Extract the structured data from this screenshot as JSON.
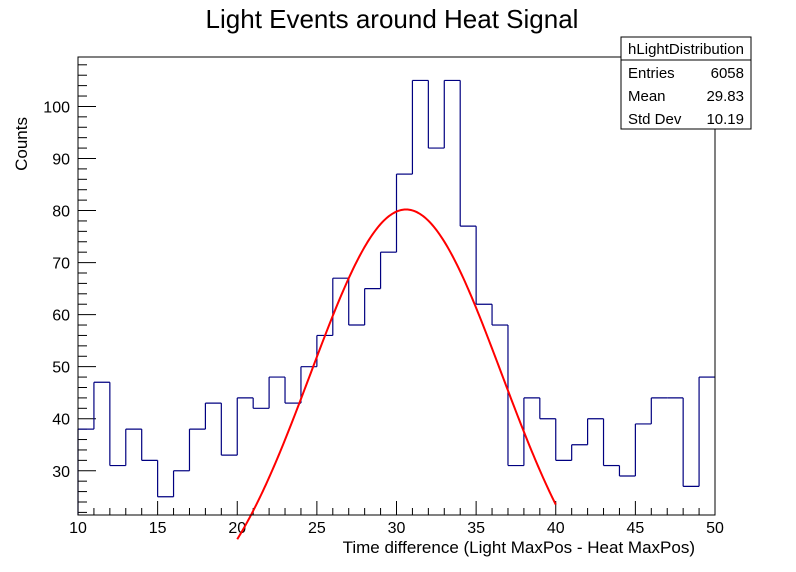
{
  "chart_data": {
    "type": "histogram",
    "title": "Light Events around Heat Signal",
    "xlabel": "Time difference (Light MaxPos - Heat MaxPos)",
    "ylabel": "Counts",
    "xlim": [
      10,
      50
    ],
    "ylim": [
      21.5,
      109.5
    ],
    "bin_edges": [
      10,
      11,
      12,
      13,
      14,
      15,
      16,
      17,
      18,
      19,
      20,
      21,
      22,
      23,
      24,
      25,
      26,
      27,
      28,
      29,
      30,
      31,
      32,
      33,
      34,
      35,
      36,
      37,
      38,
      39,
      40,
      41,
      42,
      43,
      44,
      45,
      46,
      47,
      48,
      49,
      50
    ],
    "values": [
      38,
      47,
      31,
      38,
      32,
      25,
      30,
      38,
      43,
      33,
      44,
      42,
      48,
      43,
      50,
      56,
      67,
      58,
      65,
      72,
      87,
      105,
      92,
      105,
      77,
      62,
      58,
      31,
      44,
      40,
      32,
      35,
      40,
      31,
      29,
      39,
      44,
      44,
      27,
      48
    ],
    "x_ticks": [
      "10",
      "15",
      "20",
      "25",
      "30",
      "35",
      "40",
      "45",
      "50"
    ],
    "y_ticks": [
      "30",
      "40",
      "50",
      "60",
      "70",
      "80",
      "90",
      "100"
    ],
    "fit": {
      "type": "gaussian",
      "x_range": [
        20,
        40
      ],
      "amplitude": 80.2,
      "mean": 30.6,
      "sigma": 6.0
    },
    "stats_box": {
      "name": "hLightDistribution",
      "rows": [
        {
          "label": "Entries",
          "value": "6058"
        },
        {
          "label": "Mean",
          "value": "29.83"
        },
        {
          "label": "Std Dev",
          "value": "10.19"
        }
      ]
    },
    "colors": {
      "histogram": "#000080",
      "fit": "#ff0000",
      "axis": "#000000"
    },
    "grid": false,
    "legend": "none"
  }
}
